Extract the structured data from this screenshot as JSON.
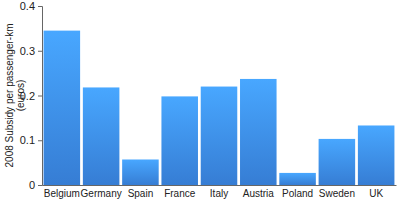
{
  "chart_data": {
    "type": "bar",
    "y_label": "2008 Subsidy per passenger-km (euros)",
    "categories": [
      "Belgium",
      "Germany",
      "Spain",
      "France",
      "Italy",
      "Austria",
      "Poland",
      "Sweden",
      "UK"
    ],
    "values": [
      0.345,
      0.218,
      0.057,
      0.198,
      0.22,
      0.237,
      0.027,
      0.103,
      0.133
    ],
    "color": "#3d8ef0",
    "ylim": [
      0,
      0.4
    ],
    "yticks": [
      0,
      0.1,
      0.2,
      0.3,
      0.4
    ],
    "grid": false
  }
}
